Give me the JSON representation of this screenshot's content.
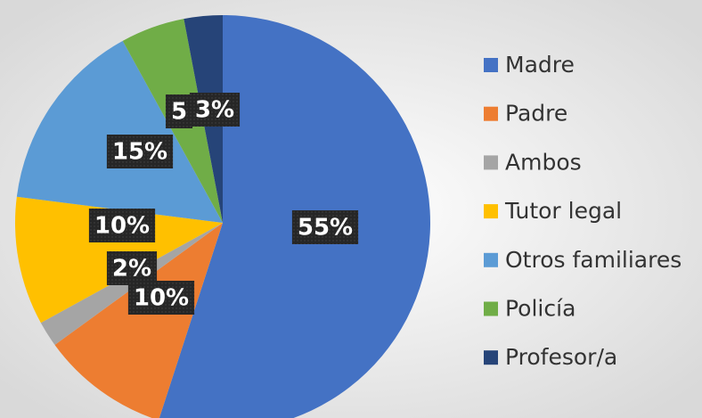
{
  "chart_data": {
    "type": "pie",
    "categories": [
      "Madre",
      "Padre",
      "Ambos",
      "Tutor legal",
      "Otros familiares",
      "Policía",
      "Profesor/a"
    ],
    "values": [
      55,
      10,
      2,
      10,
      15,
      5,
      3
    ],
    "value_labels": [
      "55%",
      "10%",
      "2%",
      "10%",
      "15%",
      "5",
      "3%"
    ],
    "colors": [
      "#4472c4",
      "#ed7d31",
      "#a5a5a5",
      "#ffc000",
      "#5b9bd5",
      "#70ad47",
      "#264478"
    ],
    "legend": "right"
  }
}
